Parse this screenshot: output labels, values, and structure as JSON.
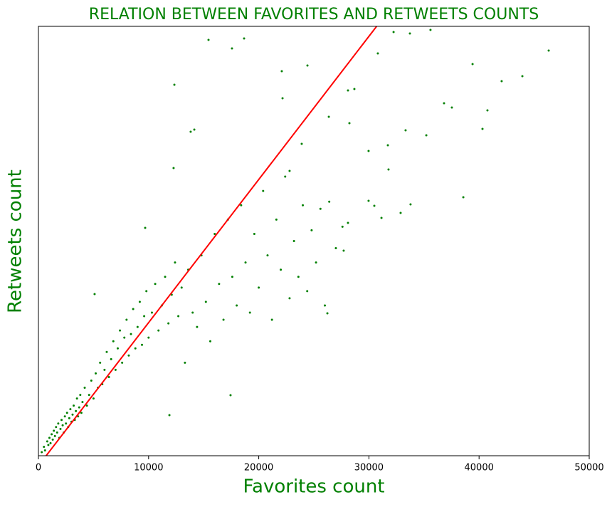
{
  "chart_data": {
    "type": "scatter",
    "title": "RELATION BETWEEN FAVORITES AND RETWEETS COUNTS",
    "x_label": "Favorites count",
    "y_label": "Retweets count",
    "xlim": [
      0,
      50000
    ],
    "xticks": [
      0,
      10000,
      20000,
      30000,
      40000,
      50000
    ],
    "ylim": [
      0,
      12000
    ],
    "label_color": "#008000",
    "series": [
      {
        "type": "scatter",
        "color": "#008000",
        "x": [
          15440,
          17570,
          18670,
          24420,
          22090,
          12340,
          32240,
          33720,
          35590,
          30810,
          46320,
          39410,
          42050,
          43930,
          40760,
          36820,
          37530,
          40310,
          38570,
          35210,
          33330,
          33780,
          32880,
          31140,
          29970,
          31780,
          31720,
          28230,
          28100,
          28680,
          28100,
          27710,
          26230,
          17440,
          11890,
          5100,
          9690,
          13820,
          14150,
          12270,
          22160,
          23900,
          22800,
          26360,
          29970,
          30490,
          300,
          500,
          600,
          800,
          900,
          1000,
          1100,
          1200,
          1300,
          1400,
          1500,
          1600,
          1700,
          1800,
          1900,
          2000,
          2100,
          2200,
          2300,
          2400,
          2500,
          2600,
          2700,
          2800,
          2900,
          3000,
          3100,
          3200,
          3300,
          3400,
          3500,
          3600,
          3700,
          3800,
          3900,
          4000,
          4200,
          4400,
          4600,
          4800,
          5000,
          5200,
          5400,
          5600,
          5800,
          6000,
          6200,
          6400,
          6600,
          6800,
          7000,
          7200,
          7400,
          7600,
          7800,
          8000,
          8200,
          8400,
          8600,
          8800,
          9000,
          9200,
          9400,
          9600,
          9800,
          10000,
          10300,
          10600,
          10900,
          11200,
          11500,
          11800,
          12100,
          12400,
          12700,
          13000,
          13300,
          13600,
          14000,
          14400,
          14800,
          15200,
          15600,
          16000,
          16400,
          16800,
          17200,
          17600,
          18000,
          18400,
          18800,
          19200,
          19600,
          20000,
          20400,
          20800,
          21200,
          21600,
          22000,
          22400,
          22800,
          23200,
          23600,
          24000,
          24400,
          24800,
          25200,
          25600,
          26000,
          26400,
          27000,
          27600
        ],
        "values": [
          11622,
          11383,
          11662,
          10906,
          10746,
          10368,
          11841,
          11801,
          11900,
          11244,
          11323,
          10945,
          10468,
          10607,
          9652,
          9851,
          9731,
          9134,
          7224,
          8955,
          9094,
          7025,
          6786,
          6647,
          7124,
          8000,
          8677,
          9293,
          10209,
          10249,
          6507,
          5731,
          3980,
          1692,
          1134,
          4517,
          6368,
          9055,
          9114,
          8040,
          9990,
          8716,
          7960,
          9473,
          8517,
          6985,
          100,
          250,
          150,
          400,
          300,
          500,
          350,
          600,
          450,
          700,
          550,
          800,
          650,
          900,
          500,
          750,
          1000,
          850,
          650,
          1100,
          900,
          1200,
          800,
          1050,
          1300,
          950,
          1150,
          1400,
          1000,
          1250,
          1600,
          1100,
          1350,
          1700,
          1200,
          1500,
          1900,
          1400,
          1700,
          2100,
          1600,
          2300,
          1900,
          2600,
          2000,
          2400,
          2900,
          2200,
          2700,
          3200,
          2400,
          3000,
          3500,
          2600,
          3300,
          3800,
          2800,
          3400,
          4100,
          3000,
          3600,
          4300,
          3100,
          3900,
          4600,
          3300,
          4000,
          4800,
          3500,
          4200,
          5000,
          3700,
          4500,
          5400,
          3900,
          4700,
          2600,
          5200,
          4000,
          3600,
          5600,
          4300,
          3200,
          6200,
          4800,
          3800,
          6600,
          5000,
          4200,
          7000,
          5400,
          4000,
          6200,
          4700,
          7400,
          5600,
          3800,
          6600,
          5200,
          7800,
          4400,
          6000,
          5000,
          7000,
          4600,
          6300,
          5400,
          6900,
          4200,
          7100,
          5800,
          6400
        ]
      },
      {
        "type": "line",
        "color": "#ff0000",
        "x": [
          700,
          30700
        ],
        "values": [
          0,
          12000
        ]
      }
    ]
  }
}
